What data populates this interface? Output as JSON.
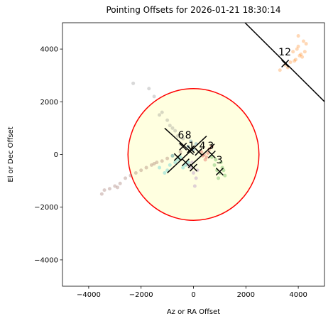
{
  "chart_data": {
    "type": "scatter",
    "title": "Pointing Offsets for 2026-01-21 18:30:14",
    "xlabel": "Az or RA Offset",
    "ylabel": "El or Dec Offset",
    "xlim": [
      -5000,
      5000
    ],
    "ylim": [
      -5000,
      5000
    ],
    "xticks": [
      {
        "value": -4000,
        "label": "−4000"
      },
      {
        "value": -2000,
        "label": "−2000"
      },
      0,
      2000,
      4000
    ],
    "yticks": [
      {
        "value": -4000,
        "label": "−4000"
      },
      {
        "value": -2000,
        "label": "−2000"
      },
      0,
      2000,
      4000
    ],
    "circle": {
      "radius": 2500,
      "edgecolor": "#ff0000",
      "facecolor": "#ffffe0"
    },
    "series": [
      {
        "color": "#ff7f0e",
        "x": [
          3800,
          4000,
          4200,
          4100,
          3600,
          3900,
          4300,
          4000,
          3700,
          4150,
          3500,
          3300,
          4250,
          3950,
          4050,
          3850
        ],
        "y": [
          3900,
          4100,
          4300,
          3800,
          3300,
          3600,
          4200,
          4500,
          3500,
          3700,
          3400,
          3200,
          3900,
          4000,
          3750,
          3550
        ]
      },
      {
        "color": "#8c564b",
        "x": [
          -3500,
          -3200,
          -3000,
          -2800,
          -2600,
          -2400,
          -2200,
          -2000,
          -1800,
          -1600,
          -1400,
          -1200,
          -1000,
          -800,
          -3400,
          -2900,
          -1500,
          -500
        ],
        "y": [
          -1500,
          -1300,
          -1200,
          -1100,
          -900,
          -800,
          -700,
          -600,
          -500,
          -400,
          -300,
          -250,
          -150,
          -50,
          -1350,
          -1250,
          -350,
          100
        ]
      },
      {
        "color": "#7f7f7f",
        "x": [
          -1700,
          -1500,
          -1200,
          -1000,
          -900,
          -700,
          -600,
          -400,
          -1300,
          -800,
          -500,
          -2300
        ],
        "y": [
          2500,
          2200,
          1600,
          1300,
          1100,
          900,
          700,
          600,
          1500,
          1000,
          400,
          2700
        ]
      },
      {
        "color": "#17becf",
        "x": [
          -1300,
          -1100,
          -900,
          -700,
          -600,
          -500,
          -300,
          -200,
          -1000,
          -400,
          -800
        ],
        "y": [
          -500,
          -700,
          -400,
          -300,
          -200,
          -100,
          -400,
          -300,
          -600,
          -500,
          -50
        ]
      },
      {
        "color": "#2ca02c",
        "x": [
          800,
          900,
          1000,
          1100,
          1200,
          950,
          1050,
          850,
          1150,
          700
        ],
        "y": [
          -400,
          -600,
          -700,
          -500,
          -800,
          -900,
          -300,
          -200,
          -600,
          -100
        ]
      },
      {
        "color": "#d62728",
        "x": [
          300,
          400,
          500,
          600,
          700,
          450,
          550,
          350
        ],
        "y": [
          100,
          0,
          -100,
          200,
          300,
          -200,
          50,
          -50
        ]
      },
      {
        "color": "#9467bd",
        "x": [
          -100,
          0,
          100,
          -200,
          50,
          150,
          -50
        ],
        "y": [
          -500,
          -700,
          -900,
          -400,
          -1200,
          -600,
          -300
        ]
      },
      {
        "color": "#1f77b4",
        "x": [
          -200,
          -100,
          0,
          100
        ],
        "y": [
          300,
          500,
          200,
          400
        ]
      }
    ],
    "centers": {
      "x": [
        3500,
        -400,
        -100,
        200,
        700,
        1000,
        -300,
        0,
        -600
      ],
      "y": [
        3450,
        300,
        200,
        100,
        0,
        -650,
        -300,
        -500,
        -100
      ]
    },
    "lines": [
      {
        "x": [
          1966,
          5000
        ],
        "y": [
          5000,
          2007
        ]
      },
      {
        "x": [
          -1100,
          0
        ],
        "y": [
          1000,
          0
        ]
      },
      {
        "x": [
          -1000,
          500
        ],
        "y": [
          -700,
          700
        ]
      },
      {
        "x": [
          -200,
          800
        ],
        "y": [
          -500,
          400
        ]
      }
    ],
    "annotations": [
      {
        "text": "12",
        "x": 3485,
        "y": 3890
      },
      {
        "text": "6",
        "x": -475,
        "y": 740
      },
      {
        "text": "8",
        "x": -200,
        "y": 740
      },
      {
        "text": "1",
        "x": -70,
        "y": 337
      },
      {
        "text": "4",
        "x": 340,
        "y": 337
      },
      {
        "text": "3",
        "x": 660,
        "y": 337
      },
      {
        "text": "3",
        "x": 990,
        "y": -200
      }
    ]
  }
}
